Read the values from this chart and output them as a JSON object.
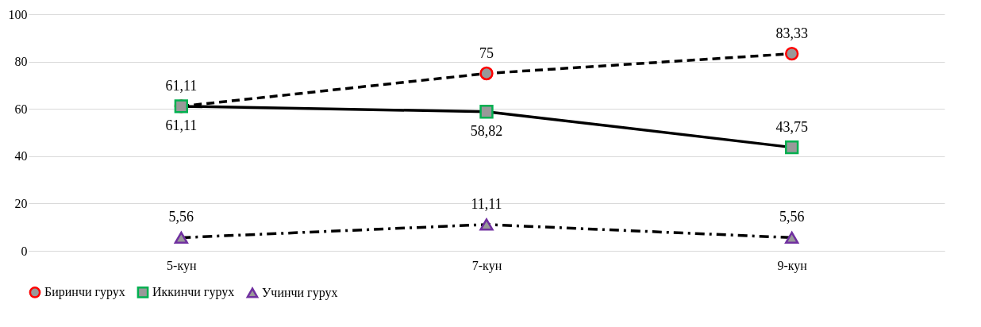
{
  "chart_data": {
    "type": "line",
    "categories": [
      "5-кун",
      "7-кун",
      "9-кун"
    ],
    "series": [
      {
        "name": "Биринчи гурух",
        "color": "#ff0000",
        "marker": "circle",
        "line_style": "dashed",
        "values": [
          61.11,
          75,
          83.33
        ],
        "value_labels": [
          "61,11",
          "75",
          "83,33"
        ]
      },
      {
        "name": "Иккинчи гурух",
        "color": "#00b050",
        "marker": "square",
        "line_style": "solid",
        "values": [
          61.11,
          58.82,
          43.75
        ],
        "value_labels": [
          "61,11",
          "58,82",
          "43,75"
        ]
      },
      {
        "name": "Учинчи гурух",
        "color": "#7030a0",
        "marker": "triangle",
        "line_style": "dashdot",
        "values": [
          5.56,
          11.11,
          5.56
        ],
        "value_labels": [
          "5,56",
          "11,11",
          "5,56"
        ]
      }
    ],
    "ylim": [
      0,
      100
    ],
    "yticks": [
      0,
      20,
      40,
      60,
      80,
      100
    ],
    "grid": "y",
    "legend": "bottom"
  }
}
